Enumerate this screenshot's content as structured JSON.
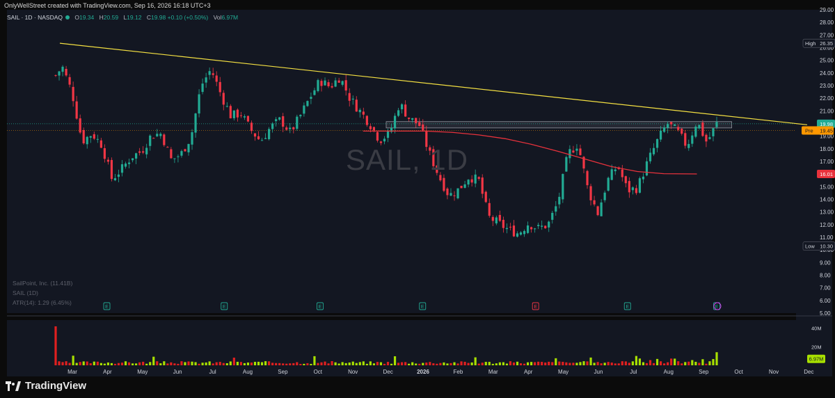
{
  "caption": "OnlyWellStreet created with TradingView.com, Sep 16, 2026 16:18 UTC+3",
  "header": {
    "symbol": "SAIL · 1D · NASDAQ",
    "o_label": "O",
    "o_value": "19.34",
    "h_label": "H",
    "h_value": "20.59",
    "l_label": "L",
    "l_value": "19.12",
    "c_label": "C",
    "c_value": "19.98",
    "change": "+0.10 (+0.50%)",
    "vol_label": "Vol",
    "vol_value": "6.97M"
  },
  "watermark": "SAIL, 1D",
  "legend": {
    "line1": "SailPoint, Inc. (11.41B)",
    "line2": "SAIL (1D)",
    "line3": "ATR(14): 1.29 (6.45%)"
  },
  "brand": "TradingView",
  "colors": {
    "up": "#22ab94",
    "down": "#f23645",
    "trendline": "#f5e142",
    "ma": "#e8323c",
    "background": "#131722",
    "vol_up": "#a8e000",
    "vol_down": "#e02020"
  },
  "chart_data": {
    "type": "candlestick",
    "symbol": "SAIL",
    "interval": "1D",
    "y_axis": {
      "min": 5,
      "max": 29,
      "ticks": [
        "29.00",
        "28.00",
        "27.00",
        "26.00",
        "25.00",
        "24.00",
        "23.00",
        "22.00",
        "21.00",
        "20.00",
        "19.00",
        "18.00",
        "17.00",
        "16.00",
        "15.00",
        "14.00",
        "13.00",
        "12.00",
        "11.00",
        "10.00",
        "9.00",
        "8.00",
        "7.00",
        "6.00",
        "5.00"
      ]
    },
    "x_axis": {
      "labels": [
        "Mar",
        "Apr",
        "May",
        "Jun",
        "Jul",
        "Aug",
        "Sep",
        "Oct",
        "Nov",
        "Dec",
        "2026",
        "Feb",
        "Mar",
        "Apr",
        "May",
        "Jun",
        "Jul",
        "Aug",
        "Sep",
        "Oct",
        "Nov",
        "Dec"
      ],
      "bold_label": "2026"
    },
    "price_tags": [
      {
        "prefix": "High",
        "value": "26.35",
        "price": 26.35,
        "kind": "high"
      },
      {
        "prefix": "",
        "value": "19.98",
        "price": 19.98,
        "kind": "last"
      },
      {
        "prefix": "Pre",
        "value": "19.45",
        "price": 19.45,
        "kind": "pre"
      },
      {
        "prefix": "",
        "value": "16.01",
        "price": 16.01,
        "kind": "ma"
      },
      {
        "prefix": "Low",
        "value": "10.30",
        "price": 10.3,
        "kind": "low"
      }
    ],
    "trendline": [
      {
        "x": 0,
        "y": 26.35
      },
      {
        "x": 1,
        "y": 19.9
      }
    ],
    "resistance_zone": {
      "from": 0.5,
      "to": 0.97,
      "low": 19.65,
      "high": 20.15
    },
    "ma_points": [
      [
        0.465,
        19.4
      ],
      [
        0.52,
        19.4
      ],
      [
        0.56,
        19.4
      ],
      [
        0.6,
        19.3
      ],
      [
        0.64,
        19.1
      ],
      [
        0.68,
        18.8
      ],
      [
        0.72,
        18.35
      ],
      [
        0.76,
        17.8
      ],
      [
        0.8,
        17.2
      ],
      [
        0.84,
        16.6
      ],
      [
        0.88,
        16.2
      ],
      [
        0.92,
        16.03
      ],
      [
        0.97,
        16.01
      ]
    ],
    "closes": [
      [
        0,
        23.8
      ],
      [
        0.01,
        24.5
      ],
      [
        0.025,
        22.4
      ],
      [
        0.04,
        18.6
      ],
      [
        0.055,
        19.2
      ],
      [
        0.07,
        18.3
      ],
      [
        0.085,
        15.6
      ],
      [
        0.1,
        16.4
      ],
      [
        0.115,
        17.4
      ],
      [
        0.13,
        17.8
      ],
      [
        0.145,
        19.1
      ],
      [
        0.16,
        19.2
      ],
      [
        0.175,
        17.1
      ],
      [
        0.19,
        17.6
      ],
      [
        0.205,
        19.0
      ],
      [
        0.22,
        23.0
      ],
      [
        0.235,
        24.3
      ],
      [
        0.25,
        22.3
      ],
      [
        0.265,
        20.6
      ],
      [
        0.28,
        20.8
      ],
      [
        0.295,
        19.5
      ],
      [
        0.31,
        18.6
      ],
      [
        0.325,
        19.7
      ],
      [
        0.34,
        20.3
      ],
      [
        0.355,
        19.3
      ],
      [
        0.37,
        20.6
      ],
      [
        0.385,
        22.1
      ],
      [
        0.4,
        23.4
      ],
      [
        0.415,
        22.9
      ],
      [
        0.43,
        23.7
      ],
      [
        0.445,
        22.0
      ],
      [
        0.46,
        21.0
      ],
      [
        0.475,
        20.0
      ],
      [
        0.49,
        18.7
      ],
      [
        0.505,
        19.2
      ],
      [
        0.52,
        21.6
      ],
      [
        0.535,
        20.4
      ],
      [
        0.55,
        19.9
      ],
      [
        0.565,
        17.7
      ],
      [
        0.58,
        15.8
      ],
      [
        0.595,
        14.3
      ],
      [
        0.61,
        14.8
      ],
      [
        0.625,
        15.8
      ],
      [
        0.64,
        15.5
      ],
      [
        0.655,
        12.6
      ],
      [
        0.67,
        12.1
      ],
      [
        0.685,
        11.6
      ],
      [
        0.7,
        11.3
      ],
      [
        0.715,
        12.1
      ],
      [
        0.73,
        11.7
      ],
      [
        0.745,
        12.0
      ],
      [
        0.76,
        13.8
      ],
      [
        0.775,
        17.6
      ],
      [
        0.79,
        18.4
      ],
      [
        0.805,
        14.8
      ],
      [
        0.82,
        12.9
      ],
      [
        0.835,
        15.5
      ],
      [
        0.85,
        16.7
      ],
      [
        0.865,
        14.7
      ],
      [
        0.88,
        14.9
      ],
      [
        0.895,
        16.9
      ],
      [
        0.91,
        18.6
      ],
      [
        0.925,
        20.0
      ],
      [
        0.94,
        19.4
      ],
      [
        0.955,
        18.2
      ],
      [
        0.97,
        20.2
      ],
      [
        0.985,
        18.5
      ],
      [
        1.0,
        19.98
      ]
    ],
    "earnings_markers": [
      {
        "x": 0.09,
        "label": "E",
        "type": "past"
      },
      {
        "x": 0.255,
        "label": "E",
        "type": "past"
      },
      {
        "x": 0.4,
        "label": "E",
        "type": "past"
      },
      {
        "x": 0.555,
        "label": "E",
        "type": "past"
      },
      {
        "x": 0.726,
        "label": "E",
        "type": "neg"
      },
      {
        "x": 0.865,
        "label": "E",
        "type": "past"
      },
      {
        "x": 1.0,
        "label": "E",
        "type": "past"
      }
    ],
    "volume": {
      "axis_ticks": [
        "40M",
        "20M"
      ],
      "last": "6.97M"
    }
  }
}
